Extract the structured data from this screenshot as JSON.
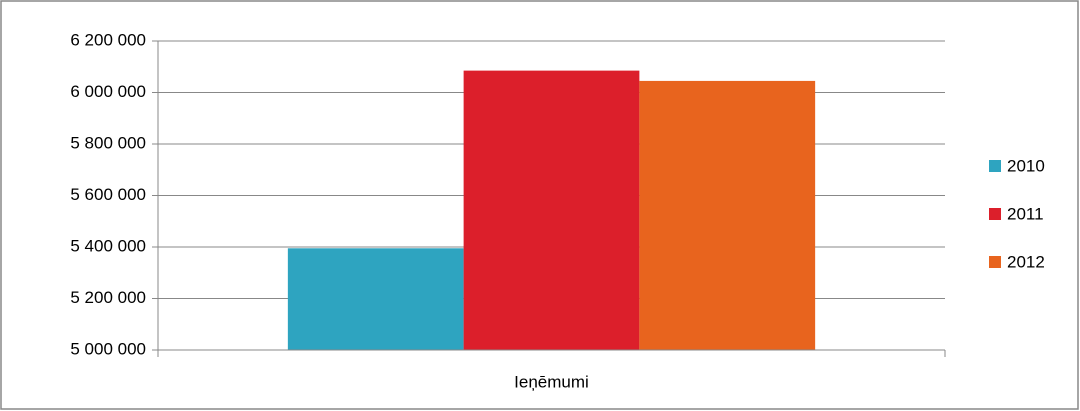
{
  "chart_data": {
    "type": "bar",
    "categories": [
      "Ieņēmumi"
    ],
    "series": [
      {
        "name": "2010",
        "color": "#2ea4c0",
        "values": [
          5395000
        ]
      },
      {
        "name": "2011",
        "color": "#dc1f2b",
        "values": [
          6085000
        ]
      },
      {
        "name": "2012",
        "color": "#e8641e",
        "values": [
          6045000
        ]
      }
    ],
    "ylim": [
      5000000,
      6200000
    ],
    "yticks": [
      {
        "value": 5000000,
        "label": "5 000 000"
      },
      {
        "value": 5200000,
        "label": "5 200 000"
      },
      {
        "value": 5400000,
        "label": "5 400 000"
      },
      {
        "value": 5600000,
        "label": "5 600 000"
      },
      {
        "value": 5800000,
        "label": "5 800 000"
      },
      {
        "value": 6000000,
        "label": "6 000 000"
      },
      {
        "value": 6200000,
        "label": "6 200 000"
      }
    ],
    "grid": true,
    "legend": "right"
  }
}
